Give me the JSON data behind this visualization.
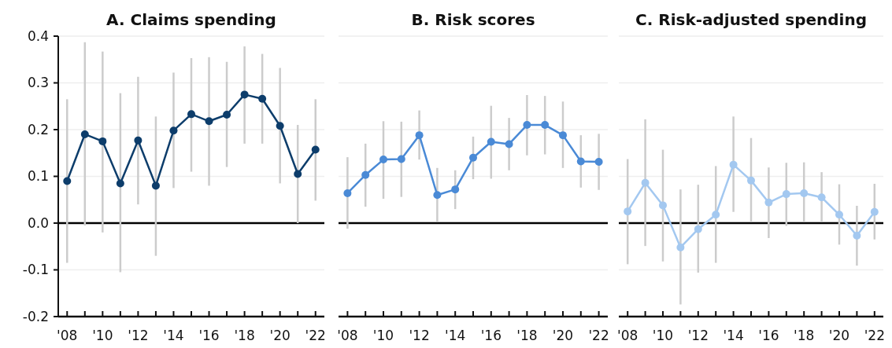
{
  "chart_data": [
    {
      "type": "line",
      "title": "A. Claims spending",
      "categories": [
        "'08",
        null,
        "'10",
        null,
        "'12",
        null,
        "'14",
        null,
        "'16",
        null,
        "'18",
        null,
        "'20",
        null,
        "'22"
      ],
      "ylim": [
        -0.2,
        0.4
      ],
      "yticks": [
        {
          "value": -0.2,
          "label": "-0.2"
        },
        {
          "value": -0.1,
          "label": "-0.1"
        },
        {
          "value": 0,
          "label": "0.0"
        },
        {
          "value": 0.1,
          "label": "0.1"
        },
        {
          "value": 0.2,
          "label": "0.2"
        },
        {
          "value": 0.3,
          "label": "0.3"
        },
        {
          "value": 0.4,
          "label": "0.4"
        }
      ],
      "grid": "y",
      "marker": "circle",
      "ref_lines": [
        {
          "axis": "y",
          "value": 0
        }
      ],
      "series": [
        {
          "color": "#0d3d6b",
          "values": [
            0.09,
            0.19,
            0.175,
            0.085,
            0.177,
            0.08,
            0.198,
            0.233,
            0.218,
            0.232,
            0.275,
            0.266,
            0.208,
            0.105,
            0.157
          ],
          "errors": [
            [
              -0.085,
              0.265
            ],
            [
              -0.005,
              0.387
            ],
            [
              -0.02,
              0.367
            ],
            [
              -0.105,
              0.278
            ],
            [
              0.04,
              0.313
            ],
            [
              -0.07,
              0.228
            ],
            [
              0.075,
              0.322
            ],
            [
              0.11,
              0.353
            ],
            [
              0.08,
              0.355
            ],
            [
              0.12,
              0.345
            ],
            [
              0.17,
              0.378
            ],
            [
              0.17,
              0.362
            ],
            [
              0.085,
              0.332
            ],
            [
              0.0,
              0.21
            ],
            [
              0.048,
              0.265
            ]
          ]
        }
      ]
    },
    {
      "type": "line",
      "title": "B. Risk scores",
      "categories": [
        "'08",
        null,
        "'10",
        null,
        "'12",
        null,
        "'14",
        null,
        "'16",
        null,
        "'18",
        null,
        "'20",
        null,
        "'22"
      ],
      "ylim": [
        -0.2,
        0.4
      ],
      "yticks": [
        {
          "value": -0.2,
          "label": null
        },
        {
          "value": -0.1,
          "label": null
        },
        {
          "value": 0,
          "label": null
        },
        {
          "value": 0.1,
          "label": null
        },
        {
          "value": 0.2,
          "label": null
        },
        {
          "value": 0.3,
          "label": null
        },
        {
          "value": 0.4,
          "label": null
        }
      ],
      "tick_labels": "x",
      "grid": "y",
      "marker": "circle",
      "ref_lines": [
        {
          "axis": "y",
          "value": 0
        }
      ],
      "series": [
        {
          "color": "#4a8ad6",
          "values": [
            0.064,
            0.103,
            0.136,
            0.137,
            0.188,
            0.06,
            0.072,
            0.14,
            0.174,
            0.169,
            0.21,
            0.21,
            0.188,
            0.132,
            0.131
          ],
          "errors": [
            [
              -0.012,
              0.141
            ],
            [
              0.035,
              0.17
            ],
            [
              0.052,
              0.218
            ],
            [
              0.056,
              0.217
            ],
            [
              0.136,
              0.241
            ],
            [
              0.003,
              0.118
            ],
            [
              0.03,
              0.113
            ],
            [
              0.094,
              0.185
            ],
            [
              0.095,
              0.251
            ],
            [
              0.113,
              0.225
            ],
            [
              0.145,
              0.274
            ],
            [
              0.147,
              0.272
            ],
            [
              0.118,
              0.26
            ],
            [
              0.076,
              0.188
            ],
            [
              0.071,
              0.191
            ]
          ]
        }
      ]
    },
    {
      "type": "line",
      "title": "C. Risk-adjusted spending",
      "categories": [
        "'08",
        null,
        "'10",
        null,
        "'12",
        null,
        "'14",
        null,
        "'16",
        null,
        "'18",
        null,
        "'20",
        null,
        "'22"
      ],
      "ylim": [
        -0.2,
        0.4
      ],
      "yticks": [
        {
          "value": -0.2,
          "label": null
        },
        {
          "value": -0.1,
          "label": null
        },
        {
          "value": 0,
          "label": null
        },
        {
          "value": 0.1,
          "label": null
        },
        {
          "value": 0.2,
          "label": null
        },
        {
          "value": 0.3,
          "label": null
        },
        {
          "value": 0.4,
          "label": null
        }
      ],
      "tick_labels": "x",
      "grid": "y",
      "marker": "circle",
      "ref_lines": [
        {
          "axis": "y",
          "value": 0
        }
      ],
      "series": [
        {
          "color": "#a3c8f0",
          "values": [
            0.025,
            0.086,
            0.038,
            -0.052,
            -0.013,
            0.018,
            0.125,
            0.091,
            0.044,
            0.062,
            0.064,
            0.055,
            0.018,
            -0.027,
            0.024
          ],
          "errors": [
            [
              -0.088,
              0.137
            ],
            [
              -0.049,
              0.222
            ],
            [
              -0.082,
              0.157
            ],
            [
              -0.174,
              0.072
            ],
            [
              -0.106,
              0.082
            ],
            [
              -0.085,
              0.122
            ],
            [
              0.024,
              0.228
            ],
            [
              0.002,
              0.182
            ],
            [
              -0.032,
              0.119
            ],
            [
              -0.006,
              0.129
            ],
            [
              0.002,
              0.13
            ],
            [
              0.002,
              0.109
            ],
            [
              -0.046,
              0.083
            ],
            [
              -0.091,
              0.037
            ],
            [
              -0.035,
              0.084
            ]
          ]
        }
      ]
    }
  ]
}
